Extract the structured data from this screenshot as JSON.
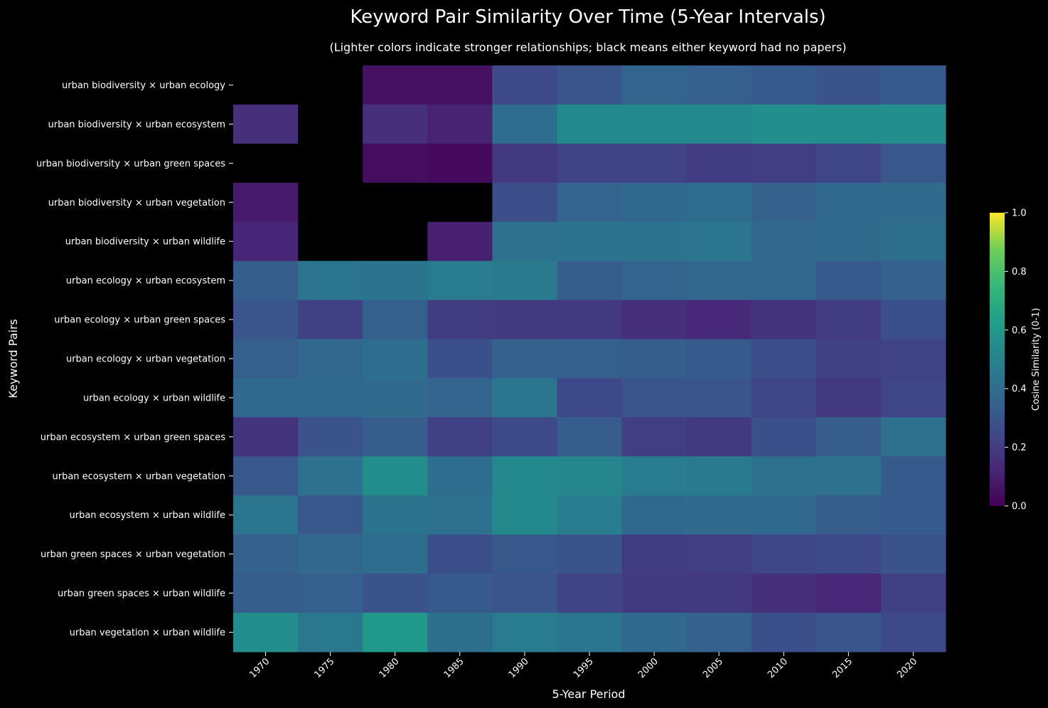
{
  "chart_data": {
    "type": "heatmap",
    "title": "Keyword Pair Similarity Over Time (5-Year Intervals)",
    "subtitle": "(Lighter colors indicate stronger relationships; black means either keyword had no papers)",
    "xlabel": "5-Year Period",
    "ylabel": "Keyword Pairs",
    "colorbar_label": "Cosine Similarity (0-1)",
    "colormap": "viridis",
    "missing_color": "#000000",
    "vmin": 0.0,
    "vmax": 1.0,
    "colorbar_ticks": [
      "0.0",
      "0.2",
      "0.4",
      "0.6",
      "0.8",
      "1.0"
    ],
    "x": [
      "1970",
      "1975",
      "1980",
      "1985",
      "1990",
      "1995",
      "2000",
      "2005",
      "2010",
      "2015",
      "2020"
    ],
    "y": [
      "urban biodiversity × urban ecology",
      "urban biodiversity × urban ecosystem",
      "urban biodiversity × urban green spaces",
      "urban biodiversity × urban vegetation",
      "urban biodiversity × urban wildlife",
      "urban ecology × urban ecosystem",
      "urban ecology × urban green spaces",
      "urban ecology × urban vegetation",
      "urban ecology × urban wildlife",
      "urban ecosystem × urban green spaces",
      "urban ecosystem × urban vegetation",
      "urban ecosystem × urban wildlife",
      "urban green spaces × urban vegetation",
      "urban green spaces × urban wildlife",
      "urban vegetation × urban wildlife"
    ],
    "values": [
      [
        null,
        null,
        0.05,
        0.05,
        0.25,
        0.3,
        0.36,
        0.34,
        0.32,
        0.29,
        0.32
      ],
      [
        0.15,
        null,
        0.15,
        0.11,
        0.4,
        0.53,
        0.53,
        0.53,
        0.56,
        0.55,
        0.56
      ],
      [
        null,
        null,
        0.04,
        0.03,
        0.19,
        0.23,
        0.23,
        0.2,
        0.21,
        0.24,
        0.31
      ],
      [
        0.08,
        null,
        null,
        null,
        0.27,
        0.36,
        0.38,
        0.4,
        0.35,
        0.38,
        0.39
      ],
      [
        0.12,
        null,
        null,
        0.1,
        0.42,
        0.43,
        0.43,
        0.44,
        0.37,
        0.39,
        0.41
      ],
      [
        0.33,
        0.44,
        0.43,
        0.47,
        0.46,
        0.33,
        0.36,
        0.37,
        0.37,
        0.32,
        0.35
      ],
      [
        0.3,
        0.22,
        0.34,
        0.2,
        0.19,
        0.19,
        0.15,
        0.13,
        0.17,
        0.2,
        0.28
      ],
      [
        0.34,
        0.37,
        0.4,
        0.28,
        0.35,
        0.34,
        0.33,
        0.32,
        0.27,
        0.22,
        0.23
      ],
      [
        0.38,
        0.38,
        0.39,
        0.36,
        0.44,
        0.25,
        0.3,
        0.3,
        0.24,
        0.19,
        0.24
      ],
      [
        0.17,
        0.29,
        0.33,
        0.22,
        0.25,
        0.33,
        0.21,
        0.19,
        0.28,
        0.33,
        0.42
      ],
      [
        0.31,
        0.42,
        0.55,
        0.4,
        0.53,
        0.52,
        0.47,
        0.46,
        0.42,
        0.42,
        0.32
      ],
      [
        0.44,
        0.31,
        0.43,
        0.42,
        0.53,
        0.48,
        0.38,
        0.39,
        0.38,
        0.33,
        0.32
      ],
      [
        0.35,
        0.37,
        0.4,
        0.27,
        0.31,
        0.29,
        0.2,
        0.21,
        0.24,
        0.25,
        0.29
      ],
      [
        0.33,
        0.34,
        0.29,
        0.32,
        0.3,
        0.23,
        0.19,
        0.19,
        0.15,
        0.13,
        0.22
      ],
      [
        0.55,
        0.45,
        0.6,
        0.41,
        0.47,
        0.44,
        0.38,
        0.35,
        0.28,
        0.3,
        0.25
      ]
    ]
  }
}
